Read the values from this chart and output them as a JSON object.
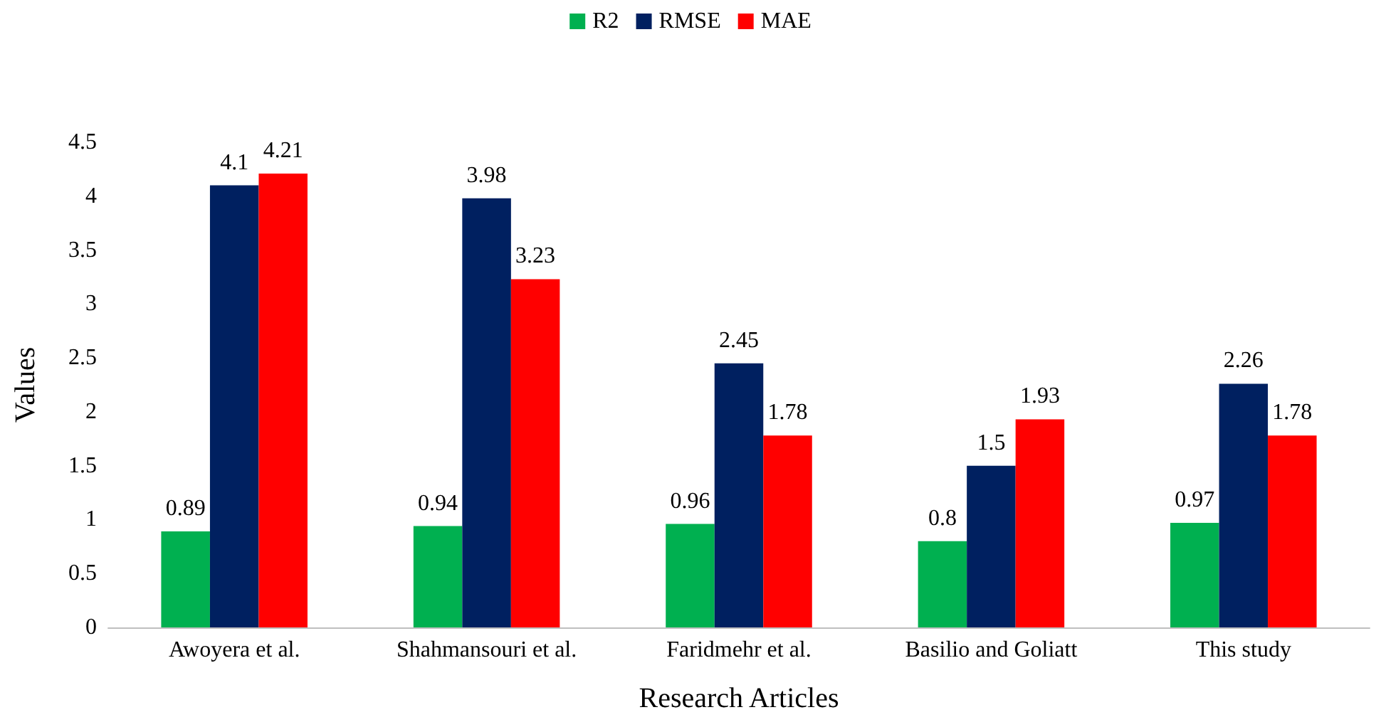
{
  "chart_data": {
    "type": "bar",
    "xlabel": "Research Articles",
    "ylabel": "Values",
    "categories": [
      "Awoyera et al.",
      "Shahmansouri et al.",
      "Faridmehr et al.",
      "Basilio and Goliatt",
      "This study"
    ],
    "series": [
      {
        "name": "R2",
        "color": "#00b050",
        "values": [
          0.89,
          0.94,
          0.96,
          0.8,
          0.97
        ]
      },
      {
        "name": "RMSE",
        "color": "#002060",
        "values": [
          4.1,
          3.98,
          2.45,
          1.5,
          2.26
        ]
      },
      {
        "name": "MAE",
        "color": "#ff0000",
        "values": [
          4.21,
          3.23,
          1.78,
          1.93,
          1.78
        ]
      }
    ],
    "ylim": [
      0,
      4.5
    ],
    "yticks": [
      0,
      0.5,
      1,
      1.5,
      2,
      2.5,
      3,
      3.5,
      4,
      4.5
    ],
    "data_labels": true,
    "legend": "top",
    "grid": false
  }
}
